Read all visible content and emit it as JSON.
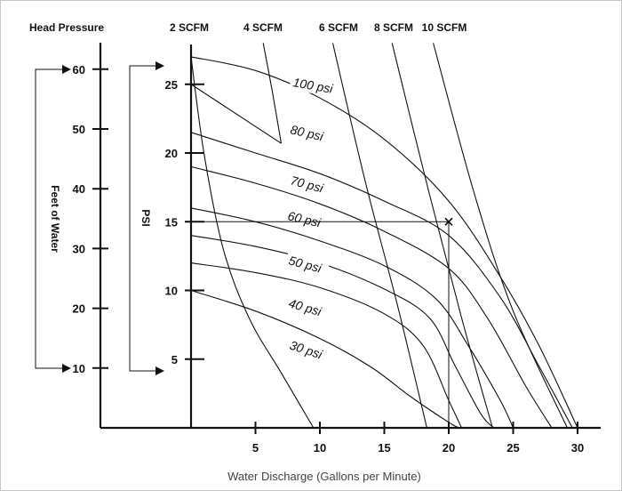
{
  "chart_data": {
    "type": "line",
    "title": "Head Pressure",
    "xlabel": "Water Discharge (Gallons per Minute)",
    "ylabel_psi": "PSI",
    "ylabel_feet": "Feet of Water",
    "xlim": [
      0,
      32.5
    ],
    "ylim_psi": [
      0,
      28
    ],
    "x_ticks": [
      "5",
      "10",
      "15",
      "20",
      "25",
      "30"
    ],
    "psi_ticks": [
      "5",
      "10",
      "15",
      "20",
      "25"
    ],
    "feet_ticks": [
      "10",
      "20",
      "30",
      "40",
      "50",
      "60"
    ],
    "psi_tick_values": [
      5,
      10,
      15,
      20,
      25
    ],
    "feet_tick_values": [
      10,
      20,
      30,
      40,
      50,
      60
    ],
    "scfm_lines": [
      {
        "name": "2 SCFM",
        "points": [
          [
            0,
            27
          ],
          [
            1,
            20
          ],
          [
            2.5,
            13
          ],
          [
            4.5,
            8
          ],
          [
            7,
            4
          ],
          [
            9.5,
            0
          ]
        ]
      },
      {
        "name": "4 SCFM",
        "points": [
          [
            5.6,
            28
          ],
          [
            6.3,
            24.5
          ],
          [
            7,
            20.7
          ]
        ]
      },
      {
        "name": "6 SCFM",
        "points": [
          [
            11,
            28
          ],
          [
            13.5,
            18
          ],
          [
            16,
            9
          ],
          [
            18.3,
            0
          ]
        ]
      },
      {
        "name": "8 SCFM",
        "points": [
          [
            15.6,
            28
          ],
          [
            18.5,
            17
          ],
          [
            21,
            8
          ],
          [
            23.4,
            0
          ]
        ]
      },
      {
        "name": "10 SCFM",
        "points": [
          [
            18.8,
            28
          ],
          [
            22,
            17
          ],
          [
            25,
            8.5
          ],
          [
            29.2,
            0
          ]
        ]
      }
    ],
    "pressure_curves": [
      {
        "name": "100 psi",
        "label": "100 psi",
        "points": [
          [
            0,
            27
          ],
          [
            5,
            26
          ],
          [
            10,
            24
          ],
          [
            15,
            21
          ],
          [
            20,
            16.5
          ],
          [
            24,
            11
          ],
          [
            27,
            6
          ],
          [
            30,
            0
          ]
        ]
      },
      {
        "name": "80 psi",
        "label": "80 psi",
        "points": [
          [
            0,
            21.5
          ],
          [
            5,
            20
          ],
          [
            10,
            18.5
          ],
          [
            15,
            16.5
          ],
          [
            20,
            14
          ],
          [
            24,
            9.5
          ],
          [
            27,
            4.5
          ],
          [
            29.6,
            0
          ]
        ]
      },
      {
        "name": "70 psi",
        "label": "70 psi",
        "points": [
          [
            0,
            19
          ],
          [
            5,
            17.8
          ],
          [
            10,
            16.3
          ],
          [
            15,
            14.3
          ],
          [
            20,
            11.6
          ],
          [
            23,
            8
          ],
          [
            26,
            3
          ],
          [
            28,
            0
          ]
        ]
      },
      {
        "name": "60 psi",
        "label": "60 psi",
        "points": [
          [
            0,
            16
          ],
          [
            5,
            15
          ],
          [
            10,
            13.6
          ],
          [
            15,
            11.8
          ],
          [
            19,
            9.4
          ],
          [
            21.5,
            6
          ],
          [
            24,
            2
          ],
          [
            25,
            0
          ]
        ]
      },
      {
        "name": "50 psi",
        "label": "50 psi",
        "points": [
          [
            0,
            14
          ],
          [
            5,
            13.2
          ],
          [
            10,
            12
          ],
          [
            15,
            10.1
          ],
          [
            18.5,
            8
          ],
          [
            20.5,
            4.5
          ],
          [
            22.5,
            1
          ],
          [
            23.5,
            0
          ]
        ]
      },
      {
        "name": "40 psi",
        "label": "40 psi",
        "points": [
          [
            0,
            12
          ],
          [
            5,
            11.3
          ],
          [
            10,
            10.2
          ],
          [
            15,
            8.3
          ],
          [
            18,
            6
          ],
          [
            20,
            2
          ],
          [
            21,
            0
          ]
        ]
      },
      {
        "name": "30 psi",
        "label": "30 psi",
        "points": [
          [
            0,
            10
          ],
          [
            5,
            8.5
          ],
          [
            10,
            6.5
          ],
          [
            14,
            4.4
          ],
          [
            17,
            2.3
          ],
          [
            20,
            0.4
          ],
          [
            20.8,
            0
          ]
        ]
      }
    ],
    "four_scfm_segment": [
      [
        0,
        25
      ],
      [
        7,
        20.7
      ]
    ],
    "example_point": {
      "x": 20,
      "psi": 15
    }
  }
}
